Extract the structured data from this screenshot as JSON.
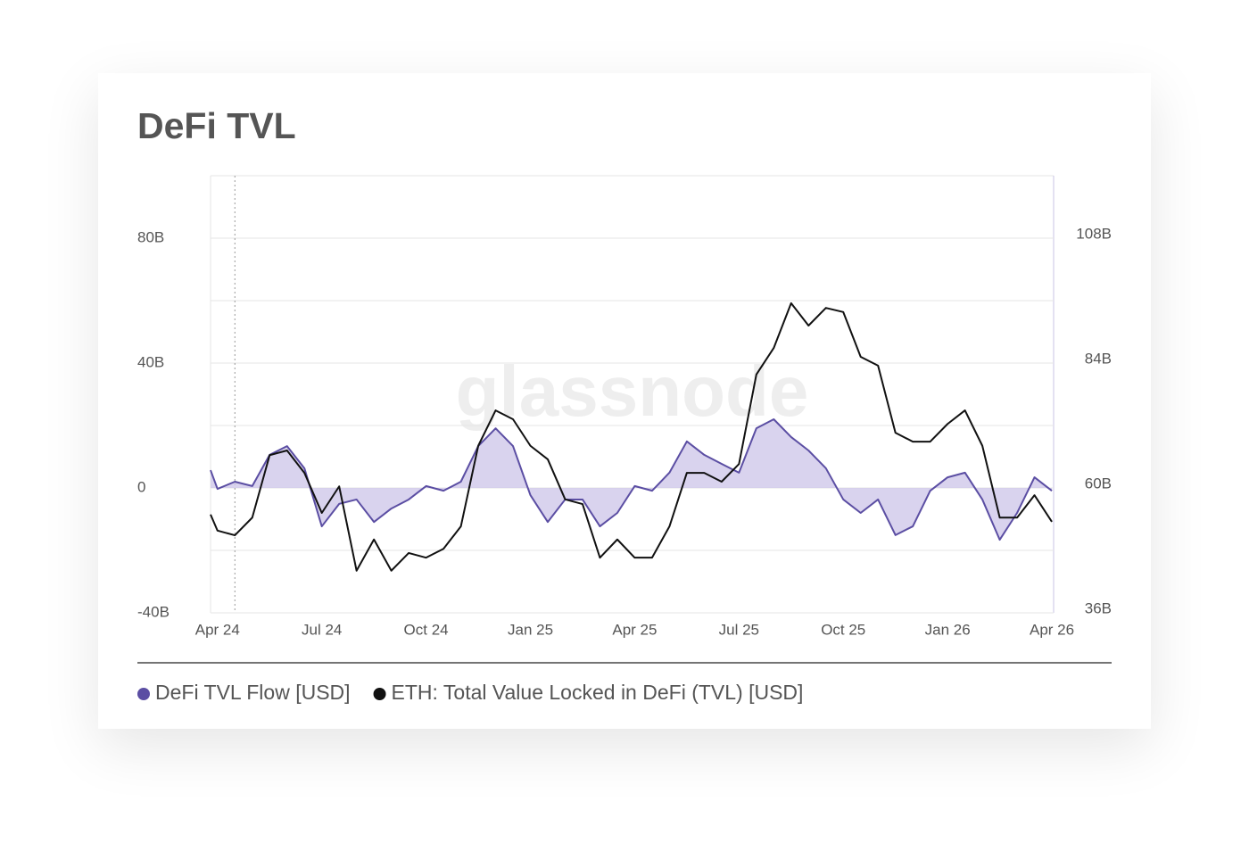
{
  "chart_data": {
    "type": "line",
    "title": "DeFi TVL",
    "watermark": "glassnode",
    "x": [
      -0.2,
      0,
      0.5,
      1,
      1.5,
      2,
      2.5,
      3,
      3.5,
      4,
      4.5,
      5,
      5.5,
      6,
      6.5,
      7,
      7.5,
      8,
      8.5,
      9,
      9.5,
      10,
      10.5,
      11,
      11.5,
      12,
      12.5,
      13,
      13.5,
      14,
      14.5,
      15,
      15.5,
      16,
      16.5,
      17,
      17.5,
      18,
      18.5,
      19,
      19.5,
      20,
      20.5,
      21,
      21.5,
      22,
      22.5,
      23,
      23.5,
      24
    ],
    "xlim": [
      -0.2,
      24.05
    ],
    "xticks": [
      {
        "value": 0,
        "label": "Apr 24"
      },
      {
        "value": 3,
        "label": "Jul 24"
      },
      {
        "value": 6,
        "label": "Oct 24"
      },
      {
        "value": 9,
        "label": "Jan 25"
      },
      {
        "value": 12,
        "label": "Apr 25"
      },
      {
        "value": 15,
        "label": "Jul 25"
      },
      {
        "value": 18,
        "label": "Oct 25"
      },
      {
        "value": 21,
        "label": "Jan 26"
      },
      {
        "value": 24,
        "label": "Apr 26"
      }
    ],
    "vline": 0.5,
    "ylim": [
      -40,
      100
    ],
    "yticks": [
      {
        "value": -40,
        "label": "-40B"
      },
      0,
      {
        "value": 40,
        "label": "40B"
      },
      {
        "value": 80,
        "label": "80B"
      }
    ],
    "ygrid": [
      -40,
      -20,
      0,
      20,
      40,
      60,
      80
    ],
    "y2lim": [
      36,
      120
    ],
    "y2ticks": [
      {
        "value": 36,
        "label": "36B"
      },
      {
        "value": 60,
        "label": "60B"
      },
      {
        "value": 84,
        "label": "84B"
      },
      {
        "value": 108,
        "label": "108B"
      }
    ],
    "series": [
      {
        "name": "DeFi TVL Flow [USD]",
        "color": "#5b4ea3",
        "fill": "#cfc8ea",
        "values": [
          5.7,
          -0.3,
          2,
          0.6,
          10.6,
          13.4,
          6.3,
          -12.3,
          -5.1,
          -3.7,
          -10.9,
          -6.6,
          -3.7,
          0.6,
          -0.9,
          2,
          13.4,
          19.1,
          13.4,
          -2.3,
          -10.9,
          -3.7,
          -3.7,
          -12.3,
          -8,
          0.6,
          -0.9,
          4.9,
          14.9,
          10.6,
          7.7,
          4.9,
          19.1,
          22,
          16.3,
          12,
          6.3,
          -3.7,
          -8,
          -3.7,
          -15.1,
          -12.3,
          -0.9,
          3.4,
          4.9,
          -3.7,
          -16.6,
          -8,
          3.4,
          -0.9
        ]
      },
      {
        "name": "ETH: Total Value Locked in DeFi (TVL) [USD]",
        "color": "#111111",
        "axis": "y2",
        "values": [
          54.9,
          51.8,
          50.9,
          54.3,
          66.3,
          67.2,
          62.9,
          55.2,
          60.3,
          44.1,
          50.1,
          44.1,
          47.5,
          46.6,
          48.3,
          52.6,
          68.1,
          74.9,
          73.2,
          68.1,
          65.5,
          57.8,
          56.9,
          46.6,
          50.1,
          46.6,
          46.6,
          52.6,
          62.9,
          62.9,
          61.2,
          64.6,
          81.8,
          86.9,
          95.5,
          91.2,
          94.6,
          93.8,
          85.2,
          83.5,
          70.6,
          68.9,
          68.9,
          72.3,
          74.9,
          68.1,
          54.3,
          54.3,
          58.6,
          53.5
        ]
      }
    ]
  }
}
